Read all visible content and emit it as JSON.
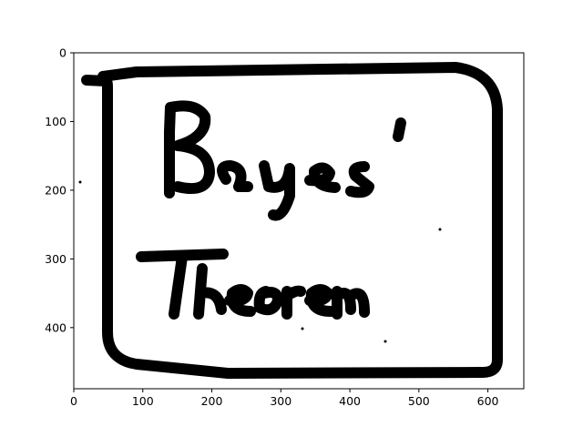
{
  "chart_data": {
    "type": "image",
    "title": "",
    "xlabel": "",
    "ylabel": "",
    "xlim": [
      0,
      652
    ],
    "ylim": [
      489,
      0
    ],
    "y_inverted": true,
    "x_ticks": [
      0,
      100,
      200,
      300,
      400,
      500,
      600
    ],
    "y_ticks": [
      0,
      100,
      200,
      300,
      400
    ],
    "grid": false,
    "image": {
      "content": "handwritten text inside a hand-drawn rounded frame",
      "text_lines": [
        "Bayes'",
        "Theorem"
      ],
      "foreground_color": "#000000",
      "background_color": "#ffffff"
    }
  }
}
